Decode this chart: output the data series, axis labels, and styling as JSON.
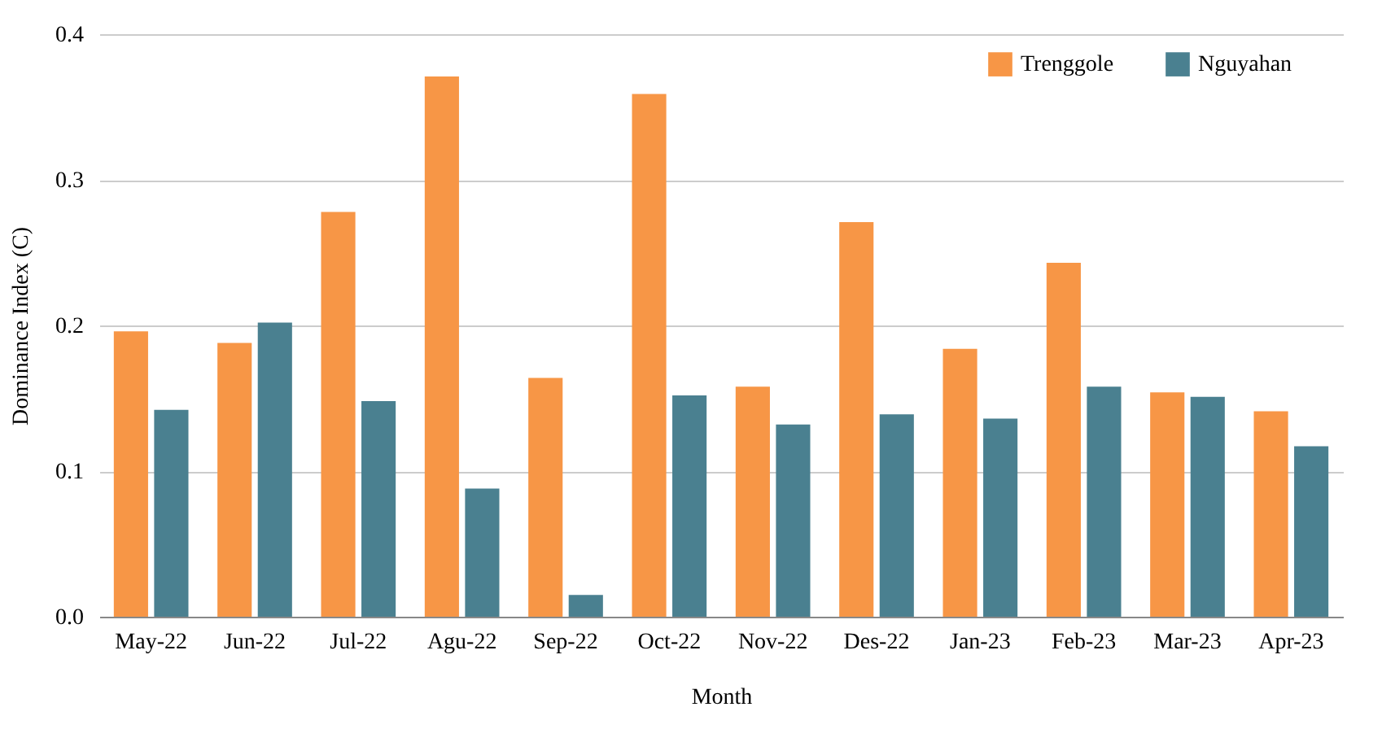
{
  "chart_data": {
    "type": "bar",
    "xlabel": "Month",
    "ylabel": "Dominance Index (C)",
    "categories": [
      "May-22",
      "Jun-22",
      "Jul-22",
      "Agu-22",
      "Sep-22",
      "Oct-22",
      "Nov-22",
      "Des-22",
      "Jan-23",
      "Feb-23",
      "Mar-23",
      "Apr-23"
    ],
    "series": [
      {
        "name": "Trenggole",
        "color": "#f79646",
        "values": [
          0.196,
          0.188,
          0.278,
          0.371,
          0.164,
          0.359,
          0.158,
          0.271,
          0.184,
          0.243,
          0.154,
          0.141
        ]
      },
      {
        "name": "Nguyahan",
        "color": "#4a8090",
        "values": [
          0.142,
          0.202,
          0.148,
          0.088,
          0.015,
          0.152,
          0.132,
          0.139,
          0.136,
          0.158,
          0.151,
          0.117
        ]
      }
    ],
    "ylim": [
      0,
      0.4
    ],
    "yticks": [
      {
        "value": 0,
        "label": "0.0"
      },
      {
        "value": 0.1,
        "label": "0.1"
      },
      {
        "value": 0.2,
        "label": "0.2"
      },
      {
        "value": 0.3,
        "label": "0.3"
      },
      {
        "value": 0.4,
        "label": "0.4"
      }
    ],
    "grid": "y",
    "legend": "top right"
  }
}
